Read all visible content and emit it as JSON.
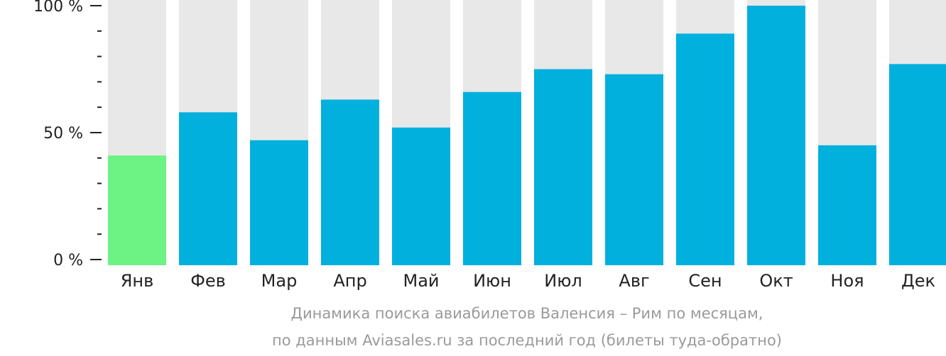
{
  "chart_data": {
    "type": "bar",
    "categories": [
      "Янв",
      "Фев",
      "Мар",
      "Апр",
      "Май",
      "Июн",
      "Июл",
      "Авг",
      "Сен",
      "Окт",
      "Ноя",
      "Дек"
    ],
    "values": [
      41,
      58,
      47,
      63,
      52,
      66,
      75,
      73,
      89,
      100,
      45,
      77
    ],
    "ylim": [
      0,
      100
    ],
    "yticks": [
      {
        "value": 100,
        "label": "100 %"
      },
      {
        "value": 50,
        "label": "50 %"
      },
      {
        "value": 0,
        "label": "0 %"
      }
    ],
    "minor_ticks": [
      90,
      80,
      70,
      60,
      40,
      30,
      20,
      10
    ],
    "highlight_index": 0,
    "colors": {
      "bar": "#02b0dd",
      "highlight": "#6cf384",
      "background_bar": "#e8e8e8",
      "axis": "#222222"
    },
    "caption": {
      "line1": "Динамика поиска авиабилетов Валенсия – Рим по месяцам,",
      "line2": "по данным Aviasales.ru за последний год (билеты туда-обратно)"
    }
  }
}
